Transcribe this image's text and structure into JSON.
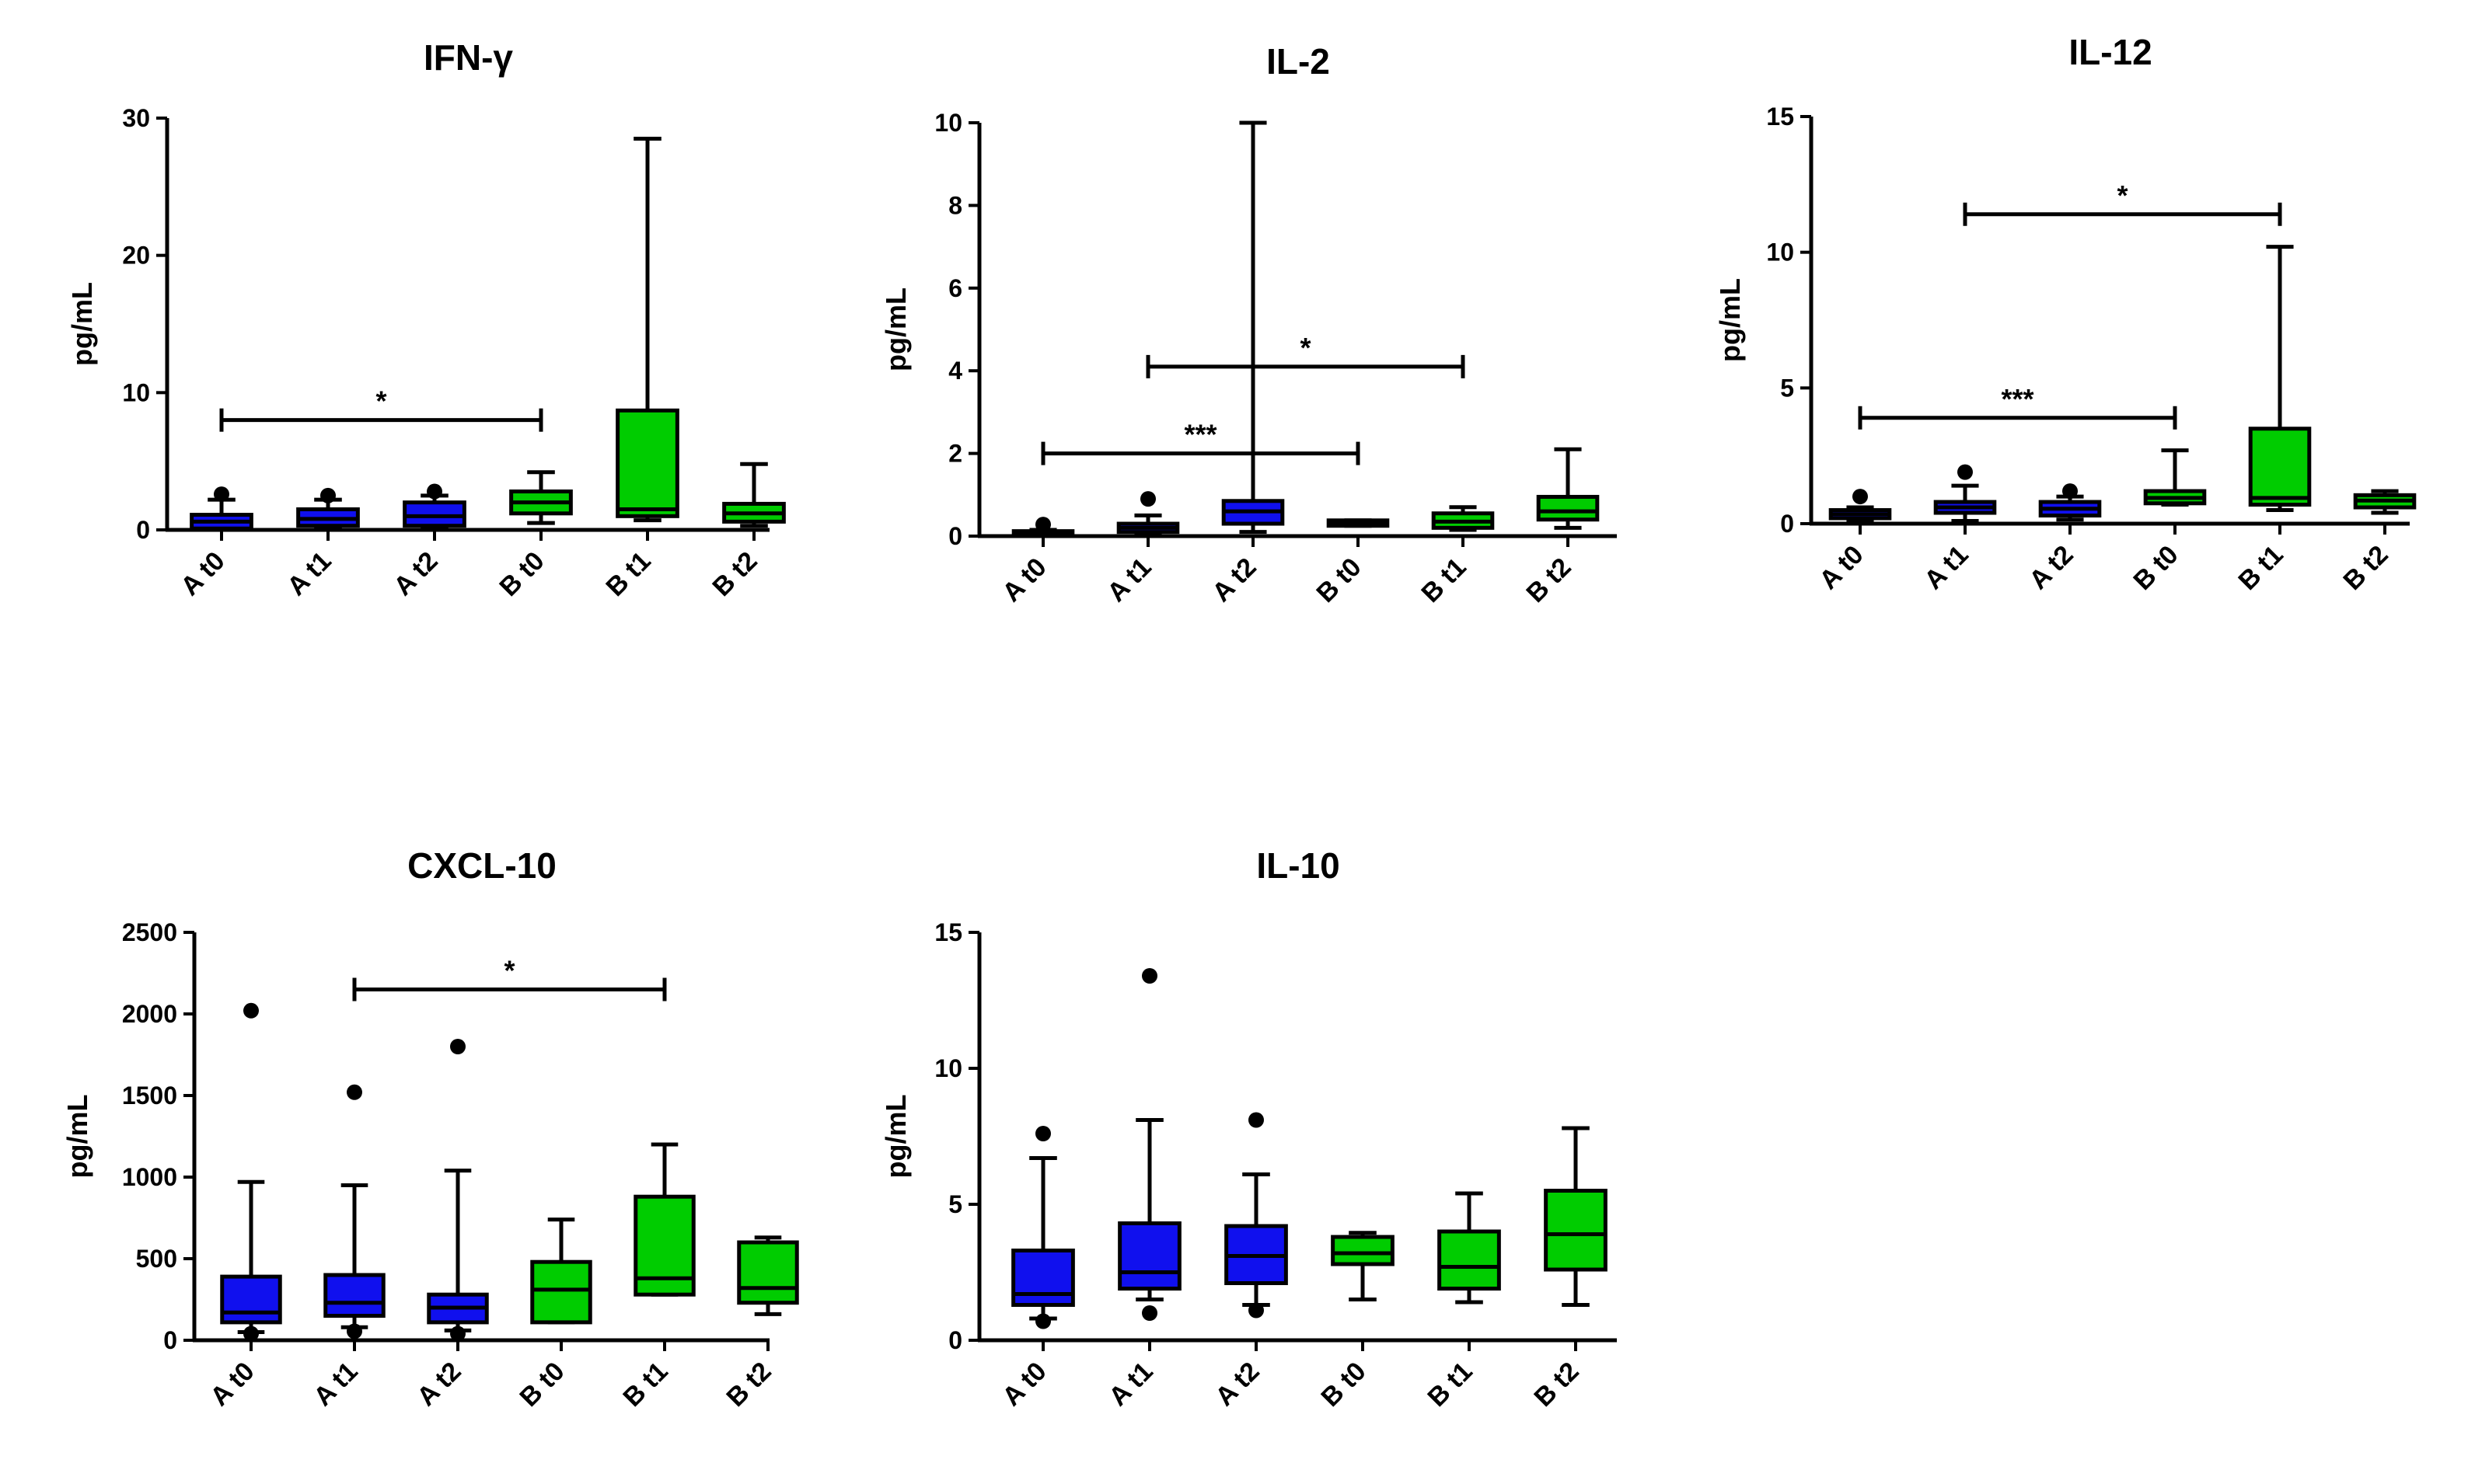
{
  "colors": {
    "group_a": "#1010ee",
    "group_b": "#00cc00",
    "ink": "#000000"
  },
  "chart_data": [
    {
      "type": "box",
      "title": "IFN-γ",
      "ylabel": "pg/mL",
      "ylim": [
        0,
        30
      ],
      "yticks": [
        0,
        10,
        20,
        30
      ],
      "categories": [
        "A t0",
        "A t1",
        "A t2",
        "B t0",
        "B t1",
        "B t2"
      ],
      "boxes": [
        {
          "q1": 0.1,
          "median": 0.6,
          "q3": 1.1,
          "whisker_low": 0.05,
          "whisker_high": 2.2,
          "outliers": [
            2.6
          ],
          "color": "group_a"
        },
        {
          "q1": 0.3,
          "median": 0.8,
          "q3": 1.5,
          "whisker_low": 0.1,
          "whisker_high": 2.2,
          "outliers": [
            2.5
          ],
          "color": "group_a"
        },
        {
          "q1": 0.3,
          "median": 1.0,
          "q3": 2.0,
          "whisker_low": 0.1,
          "whisker_high": 2.5,
          "outliers": [
            2.8
          ],
          "color": "group_a"
        },
        {
          "q1": 1.2,
          "median": 2.0,
          "q3": 2.8,
          "whisker_low": 0.5,
          "whisker_high": 4.2,
          "outliers": [],
          "color": "group_b"
        },
        {
          "q1": 1.0,
          "median": 1.5,
          "q3": 8.7,
          "whisker_low": 0.7,
          "whisker_high": 28.5,
          "outliers": [],
          "color": "group_b"
        },
        {
          "q1": 0.6,
          "median": 1.2,
          "q3": 1.9,
          "whisker_low": 0.3,
          "whisker_high": 4.8,
          "outliers": [],
          "color": "group_b"
        }
      ],
      "significance": [
        {
          "from": 0,
          "to": 3,
          "y": 8.0,
          "label": "*"
        }
      ]
    },
    {
      "type": "box",
      "title": "IL-2",
      "ylabel": "pg/mL",
      "ylim": [
        0,
        10
      ],
      "yticks": [
        0,
        2,
        4,
        6,
        8,
        10
      ],
      "categories": [
        "A t0",
        "A t1",
        "A t2",
        "B t0",
        "B t1",
        "B t2"
      ],
      "boxes": [
        {
          "q1": 0.05,
          "median": 0.08,
          "q3": 0.12,
          "whisker_low": 0.02,
          "whisker_high": 0.15,
          "outliers": [
            0.28
          ],
          "color": "group_a"
        },
        {
          "q1": 0.1,
          "median": 0.2,
          "q3": 0.3,
          "whisker_low": 0.05,
          "whisker_high": 0.5,
          "outliers": [
            0.9
          ],
          "color": "group_a"
        },
        {
          "q1": 0.3,
          "median": 0.6,
          "q3": 0.85,
          "whisker_low": 0.1,
          "whisker_high": 10.0,
          "outliers": [],
          "color": "group_a"
        },
        {
          "q1": 0.25,
          "median": 0.3,
          "q3": 0.38,
          "whisker_low": 0.25,
          "whisker_high": 0.38,
          "outliers": [],
          "color": "group_b"
        },
        {
          "q1": 0.2,
          "median": 0.35,
          "q3": 0.55,
          "whisker_low": 0.15,
          "whisker_high": 0.7,
          "outliers": [],
          "color": "group_b"
        },
        {
          "q1": 0.4,
          "median": 0.6,
          "q3": 0.95,
          "whisker_low": 0.2,
          "whisker_high": 2.1,
          "outliers": [],
          "color": "group_b"
        }
      ],
      "significance": [
        {
          "from": 0,
          "to": 3,
          "y": 2.0,
          "label": "***"
        },
        {
          "from": 1,
          "to": 4,
          "y": 4.1,
          "label": "*"
        }
      ]
    },
    {
      "type": "box",
      "title": "IL-12",
      "ylabel": "pg/mL",
      "ylim": [
        0,
        15
      ],
      "yticks": [
        0,
        5,
        10,
        15
      ],
      "categories": [
        "A t0",
        "A t1",
        "A t2",
        "B t0",
        "B t1",
        "B t2"
      ],
      "boxes": [
        {
          "q1": 0.2,
          "median": 0.35,
          "q3": 0.5,
          "whisker_low": 0.1,
          "whisker_high": 0.6,
          "outliers": [
            1.0
          ],
          "color": "group_a"
        },
        {
          "q1": 0.4,
          "median": 0.6,
          "q3": 0.8,
          "whisker_low": 0.1,
          "whisker_high": 1.4,
          "outliers": [
            1.9
          ],
          "color": "group_a"
        },
        {
          "q1": 0.3,
          "median": 0.55,
          "q3": 0.8,
          "whisker_low": 0.15,
          "whisker_high": 1.0,
          "outliers": [
            1.2
          ],
          "color": "group_a"
        },
        {
          "q1": 0.75,
          "median": 0.95,
          "q3": 1.2,
          "whisker_low": 0.7,
          "whisker_high": 2.7,
          "outliers": [],
          "color": "group_b"
        },
        {
          "q1": 0.7,
          "median": 0.95,
          "q3": 3.5,
          "whisker_low": 0.5,
          "whisker_high": 10.2,
          "outliers": [],
          "color": "group_b"
        },
        {
          "q1": 0.6,
          "median": 0.85,
          "q3": 1.05,
          "whisker_low": 0.4,
          "whisker_high": 1.2,
          "outliers": [],
          "color": "group_b"
        }
      ],
      "significance": [
        {
          "from": 0,
          "to": 3,
          "y": 3.9,
          "label": "***"
        },
        {
          "from": 1,
          "to": 4,
          "y": 11.4,
          "label": "*"
        }
      ]
    },
    {
      "type": "box",
      "title": "CXCL-10",
      "ylabel": "pg/mL",
      "ylim": [
        0,
        2500
      ],
      "yticks": [
        0,
        500,
        1000,
        1500,
        2000,
        2500
      ],
      "categories": [
        "A t0",
        "A t1",
        "A t2",
        "B t0",
        "B t1",
        "B t2"
      ],
      "boxes": [
        {
          "q1": 110,
          "median": 170,
          "q3": 390,
          "whisker_low": 50,
          "whisker_high": 970,
          "outliers": [
            2020,
            40
          ],
          "color": "group_a"
        },
        {
          "q1": 150,
          "median": 230,
          "q3": 400,
          "whisker_low": 80,
          "whisker_high": 950,
          "outliers": [
            1520,
            55
          ],
          "color": "group_a"
        },
        {
          "q1": 110,
          "median": 200,
          "q3": 280,
          "whisker_low": 60,
          "whisker_high": 1040,
          "outliers": [
            1800,
            40
          ],
          "color": "group_a"
        },
        {
          "q1": 110,
          "median": 310,
          "q3": 480,
          "whisker_low": 110,
          "whisker_high": 740,
          "outliers": [],
          "color": "group_b"
        },
        {
          "q1": 280,
          "median": 380,
          "q3": 880,
          "whisker_low": 280,
          "whisker_high": 1200,
          "outliers": [],
          "color": "group_b"
        },
        {
          "q1": 230,
          "median": 320,
          "q3": 600,
          "whisker_low": 160,
          "whisker_high": 630,
          "outliers": [],
          "color": "group_b"
        }
      ],
      "significance": [
        {
          "from": 1,
          "to": 4,
          "y": 2150,
          "label": "*"
        }
      ]
    },
    {
      "type": "box",
      "title": "IL-10",
      "ylabel": "pg/mL",
      "ylim": [
        0,
        15
      ],
      "yticks": [
        0,
        5,
        10,
        15
      ],
      "categories": [
        "A t0",
        "A t1",
        "A t2",
        "B t0",
        "B t1",
        "B t2"
      ],
      "boxes": [
        {
          "q1": 1.3,
          "median": 1.7,
          "q3": 3.3,
          "whisker_low": 0.8,
          "whisker_high": 6.7,
          "outliers": [
            7.6,
            0.7
          ],
          "color": "group_a"
        },
        {
          "q1": 1.9,
          "median": 2.5,
          "q3": 4.3,
          "whisker_low": 1.5,
          "whisker_high": 8.1,
          "outliers": [
            13.4,
            1.0
          ],
          "color": "group_a"
        },
        {
          "q1": 2.1,
          "median": 3.1,
          "q3": 4.2,
          "whisker_low": 1.3,
          "whisker_high": 6.1,
          "outliers": [
            8.1,
            1.1
          ],
          "color": "group_a"
        },
        {
          "q1": 2.8,
          "median": 3.2,
          "q3": 3.8,
          "whisker_low": 1.5,
          "whisker_high": 3.95,
          "outliers": [],
          "color": "group_b"
        },
        {
          "q1": 1.9,
          "median": 2.7,
          "q3": 4.0,
          "whisker_low": 1.4,
          "whisker_high": 5.4,
          "outliers": [],
          "color": "group_b"
        },
        {
          "q1": 2.6,
          "median": 3.9,
          "q3": 5.5,
          "whisker_low": 1.3,
          "whisker_high": 7.8,
          "outliers": [],
          "color": "group_b"
        }
      ],
      "significance": []
    }
  ]
}
